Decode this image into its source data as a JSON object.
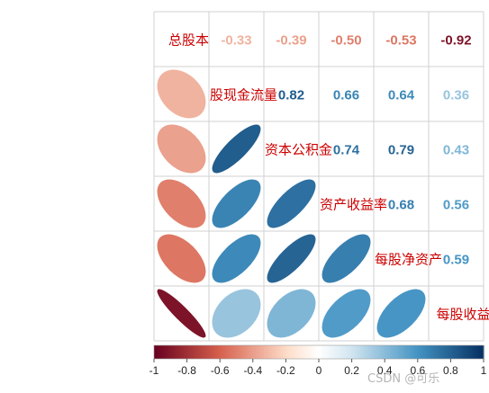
{
  "chart_data": {
    "type": "heatmap",
    "subtype": "correlation-matrix",
    "variables": [
      "总股本",
      "股现金流量",
      "资本公积金",
      "资产收益率",
      "每股净资产",
      "每股收益"
    ],
    "matrix": [
      [
        1,
        -0.33,
        -0.39,
        -0.5,
        -0.53,
        -0.92
      ],
      [
        -0.33,
        1,
        0.82,
        0.66,
        0.64,
        0.36
      ],
      [
        -0.39,
        0.82,
        1,
        0.74,
        0.79,
        0.43
      ],
      [
        -0.5,
        0.66,
        0.74,
        1,
        0.68,
        0.56
      ],
      [
        -0.53,
        0.64,
        0.79,
        0.68,
        1,
        0.59
      ],
      [
        -0.92,
        0.36,
        0.43,
        0.56,
        0.59,
        1
      ]
    ],
    "upper_labels": [
      [
        "-0.33",
        "-0.39",
        "-0.50",
        "-0.53",
        "-0.92"
      ],
      [
        "0.82",
        "0.66",
        "0.64",
        "0.36"
      ],
      [
        "0.74",
        "0.79",
        "0.43"
      ],
      [
        "0.68",
        "0.56"
      ],
      [
        "0.59"
      ]
    ],
    "upper_method": "number",
    "lower_method": "ellipse",
    "diagonal": "variable names",
    "colorbar": {
      "range": [
        -1,
        1
      ],
      "ticks": [
        "-1",
        "-0.8",
        "-0.6",
        "-0.4",
        "-0.2",
        "0",
        "0.2",
        "0.4",
        "0.6",
        "0.8",
        "1"
      ],
      "position": "bottom"
    },
    "colors": {
      "neg_dark": "#67001f",
      "neg_mid": "#d6604d",
      "neg_light": "#fddbc7",
      "zero": "#ffffff",
      "pos_light": "#d1e5f0",
      "pos_mid": "#4393c3",
      "pos_dark": "#053061",
      "label": "#cc0000",
      "grid": "#d0d0d0"
    }
  },
  "watermark": "CSDN @可乐"
}
